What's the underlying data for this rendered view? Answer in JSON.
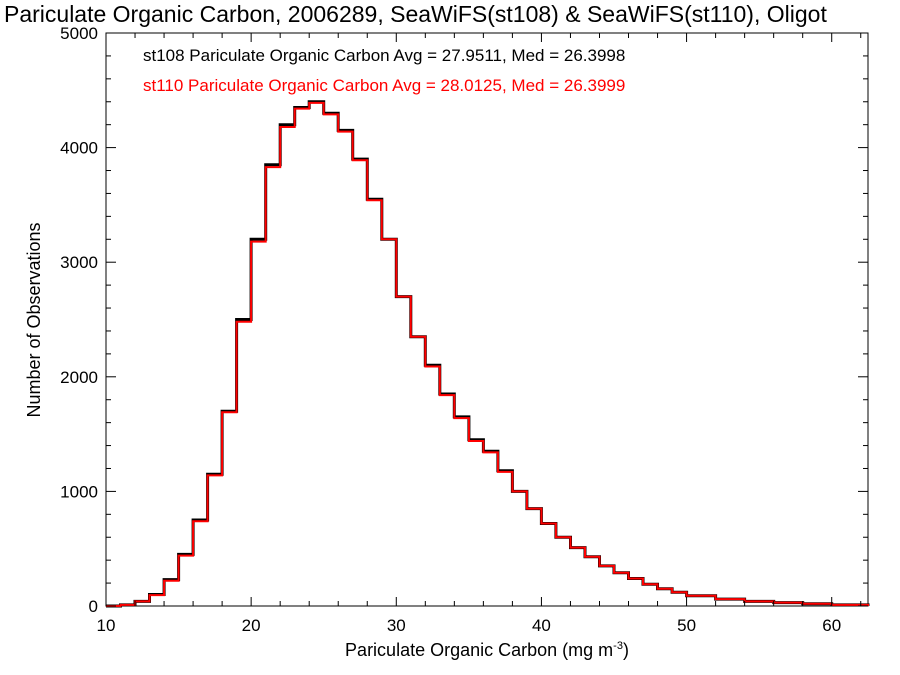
{
  "chart_data": {
    "type": "line",
    "subtype": "step-histogram",
    "title": "Pariculate Organic Carbon, 2006289, SeaWiFS(st108) & SeaWiFS(st110), Oligot",
    "xlabel": "Pariculate Organic Carbon (mg m",
    "xlabel_superscript": "-3",
    "xlabel_suffix": ")",
    "ylabel": "Number of Observations",
    "xlim": [
      10,
      62.5
    ],
    "ylim": [
      0,
      5000
    ],
    "x_ticks": [
      "10",
      "20",
      "30",
      "40",
      "50",
      "60"
    ],
    "y_ticks": [
      "0",
      "1000",
      "2000",
      "3000",
      "4000",
      "5000"
    ],
    "grid": false,
    "legend_placement": "top-left",
    "x": [
      10.0,
      11.0,
      12.0,
      13.0,
      14.0,
      15.0,
      16.0,
      17.0,
      18.0,
      19.0,
      20.0,
      21.0,
      22.0,
      23.0,
      24.0,
      25.0,
      26.0,
      27.0,
      28.0,
      29.0,
      30.0,
      31.0,
      32.0,
      33.0,
      34.0,
      35.0,
      36.0,
      37.0,
      38.0,
      39.0,
      40.0,
      41.0,
      42.0,
      43.0,
      44.0,
      45.0,
      46.0,
      47.0,
      48.0,
      49.0,
      50.0,
      52.0,
      54.0,
      56.0,
      58.0,
      60.0,
      62.5
    ],
    "series": [
      {
        "name": "st108",
        "legend": "st108 Pariculate Organic Carbon Avg = 27.9511, Med = 26.3998",
        "color": "#000000",
        "values": [
          0,
          10,
          40,
          100,
          230,
          450,
          750,
          1150,
          1700,
          2500,
          3200,
          3850,
          4200,
          4350,
          4400,
          4300,
          4150,
          3900,
          3550,
          3200,
          2700,
          2350,
          2100,
          1850,
          1650,
          1450,
          1350,
          1180,
          1000,
          850,
          720,
          600,
          510,
          430,
          350,
          290,
          240,
          190,
          150,
          120,
          90,
          60,
          40,
          30,
          20,
          10,
          0
        ]
      },
      {
        "name": "st110",
        "legend": "st110 Pariculate Organic Carbon Avg = 28.0125, Med = 26.3999",
        "color": "#ff0000",
        "values": [
          0,
          10,
          40,
          95,
          220,
          440,
          740,
          1140,
          1690,
          2480,
          3180,
          3830,
          4180,
          4340,
          4390,
          4290,
          4140,
          3890,
          3540,
          3200,
          2700,
          2350,
          2090,
          1840,
          1640,
          1440,
          1340,
          1170,
          1000,
          850,
          720,
          600,
          510,
          430,
          350,
          290,
          240,
          190,
          150,
          120,
          90,
          60,
          40,
          30,
          20,
          10,
          0
        ]
      }
    ]
  }
}
